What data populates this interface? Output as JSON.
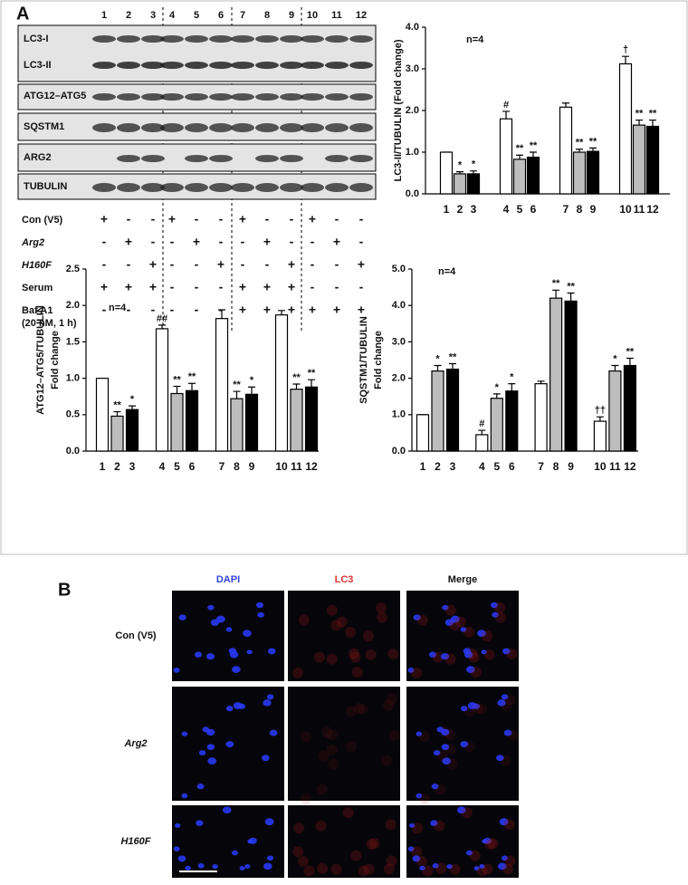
{
  "panels": [
    "A",
    "B"
  ],
  "blot": {
    "lanes": [
      "1",
      "2",
      "3",
      "4",
      "5",
      "6",
      "7",
      "8",
      "9",
      "10",
      "11",
      "12"
    ],
    "rows": [
      "LC3-I",
      "LC3-II",
      "ATG12–ATG5",
      "SQSTM1",
      "ARG2",
      "TUBULIN"
    ],
    "conditions": [
      {
        "label": "Con (V5)",
        "signs": [
          "+",
          "-",
          "-",
          "+",
          "-",
          "-",
          "+",
          "-",
          "-",
          "+",
          "-",
          "-"
        ]
      },
      {
        "label": "Arg2",
        "signs": [
          "-",
          "+",
          "-",
          "-",
          "+",
          "-",
          "-",
          "+",
          "-",
          "-",
          "+",
          "-"
        ]
      },
      {
        "label": "H160F",
        "signs": [
          "-",
          "-",
          "+",
          "-",
          "-",
          "+",
          "-",
          "-",
          "+",
          "-",
          "-",
          "+"
        ]
      },
      {
        "label": "Serum",
        "signs": [
          "+",
          "+",
          "+",
          "-",
          "-",
          "-",
          "+",
          "+",
          "+",
          "-",
          "-",
          "-"
        ]
      },
      {
        "label": "Baf A1",
        "sublabel": "(20 nM, 1 h)",
        "signs": [
          "-",
          "-",
          "-",
          "-",
          "-",
          "-",
          "+",
          "+",
          "+",
          "+",
          "+",
          "+"
        ]
      }
    ]
  },
  "chart_data": [
    {
      "type": "bar",
      "ylabel": [
        "LC3-II/TUBULIN (Fold change)"
      ],
      "annotation": "n=4",
      "categories": [
        "1",
        "2",
        "3",
        "4",
        "5",
        "6",
        "7",
        "8",
        "9",
        "10",
        "11",
        "12"
      ],
      "values": [
        1,
        0.48,
        0.48,
        1.8,
        0.83,
        0.88,
        2.08,
        1.0,
        1.02,
        3.12,
        1.65,
        1.62
      ],
      "errors": [
        0,
        0.05,
        0.07,
        0.18,
        0.1,
        0.12,
        0.1,
        0.07,
        0.08,
        0.18,
        0.12,
        0.15
      ],
      "significance": [
        null,
        "*",
        "*",
        "#",
        "**",
        "**",
        null,
        "**",
        "**",
        "†",
        "**",
        "**"
      ],
      "colors": [
        "#ffffff",
        "#bdbdbd",
        "#000000",
        "#ffffff",
        "#bdbdbd",
        "#000000",
        "#ffffff",
        "#bdbdbd",
        "#000000",
        "#ffffff",
        "#bdbdbd",
        "#000000"
      ],
      "ylim": [
        0,
        4
      ],
      "yticks": [
        {
          "value": 0,
          "label": "0.0"
        },
        {
          "value": 1,
          "label": "1.0"
        },
        {
          "value": 2,
          "label": "2.0"
        },
        {
          "value": 3,
          "label": "3.0"
        },
        {
          "value": 4,
          "label": "4.0"
        }
      ]
    },
    {
      "type": "bar",
      "ylabel": [
        "ATG12–ATG5/TUBULIN",
        "Fold change"
      ],
      "annotation": "n=4",
      "categories": [
        "1",
        "2",
        "3",
        "4",
        "5",
        "6",
        "7",
        "8",
        "9",
        "10",
        "11",
        "12"
      ],
      "values": [
        1,
        0.48,
        0.57,
        1.68,
        0.79,
        0.83,
        1.82,
        0.72,
        0.78,
        1.87,
        0.85,
        0.88
      ],
      "errors": [
        0,
        0.06,
        0.05,
        0.05,
        0.1,
        0.1,
        0.12,
        0.1,
        0.1,
        0.06,
        0.07,
        0.1
      ],
      "significance": [
        null,
        "**",
        "*",
        "##",
        "**",
        "**",
        null,
        "**",
        "*",
        null,
        "**",
        "**"
      ],
      "colors": [
        "#ffffff",
        "#bdbdbd",
        "#000000",
        "#ffffff",
        "#bdbdbd",
        "#000000",
        "#ffffff",
        "#bdbdbd",
        "#000000",
        "#ffffff",
        "#bdbdbd",
        "#000000"
      ],
      "ylim": [
        0,
        2.5
      ],
      "yticks": [
        {
          "value": 0,
          "label": "0.0"
        },
        0.5,
        {
          "value": 1,
          "label": "1.0"
        },
        1.5,
        {
          "value": 2,
          "label": "2.0"
        },
        2.5
      ]
    },
    {
      "type": "bar",
      "ylabel": [
        "SQSTM1/TUBULIN",
        "Fold change"
      ],
      "annotation": "n=4",
      "categories": [
        "1",
        "2",
        "3",
        "4",
        "5",
        "6",
        "7",
        "8",
        "9",
        "10",
        "11",
        "12"
      ],
      "values": [
        1,
        2.2,
        2.25,
        0.45,
        1.45,
        1.65,
        1.85,
        4.2,
        4.12,
        0.82,
        2.2,
        2.35
      ],
      "errors": [
        0,
        0.15,
        0.15,
        0.12,
        0.12,
        0.2,
        0.07,
        0.22,
        0.22,
        0.12,
        0.15,
        0.2
      ],
      "significance": [
        null,
        "*",
        "**",
        "#",
        "*",
        "*",
        null,
        "**",
        "**",
        "††",
        "*",
        "**"
      ],
      "colors": [
        "#ffffff",
        "#bdbdbd",
        "#000000",
        "#ffffff",
        "#bdbdbd",
        "#000000",
        "#ffffff",
        "#bdbdbd",
        "#000000",
        "#ffffff",
        "#bdbdbd",
        "#000000"
      ],
      "ylim": [
        0,
        5
      ],
      "yticks": [
        {
          "value": 0,
          "label": "0.0"
        },
        {
          "value": 1,
          "label": "1.0"
        },
        {
          "value": 2,
          "label": "2.0"
        },
        {
          "value": 3,
          "label": "3.0"
        },
        {
          "value": 4,
          "label": "4.0"
        },
        {
          "value": 5,
          "label": "5.0"
        }
      ]
    }
  ],
  "micrographs": {
    "columns": [
      "DAPI",
      "LC3",
      "Merge"
    ],
    "rows": [
      "Con (V5)",
      "Arg2",
      "H160F"
    ]
  }
}
